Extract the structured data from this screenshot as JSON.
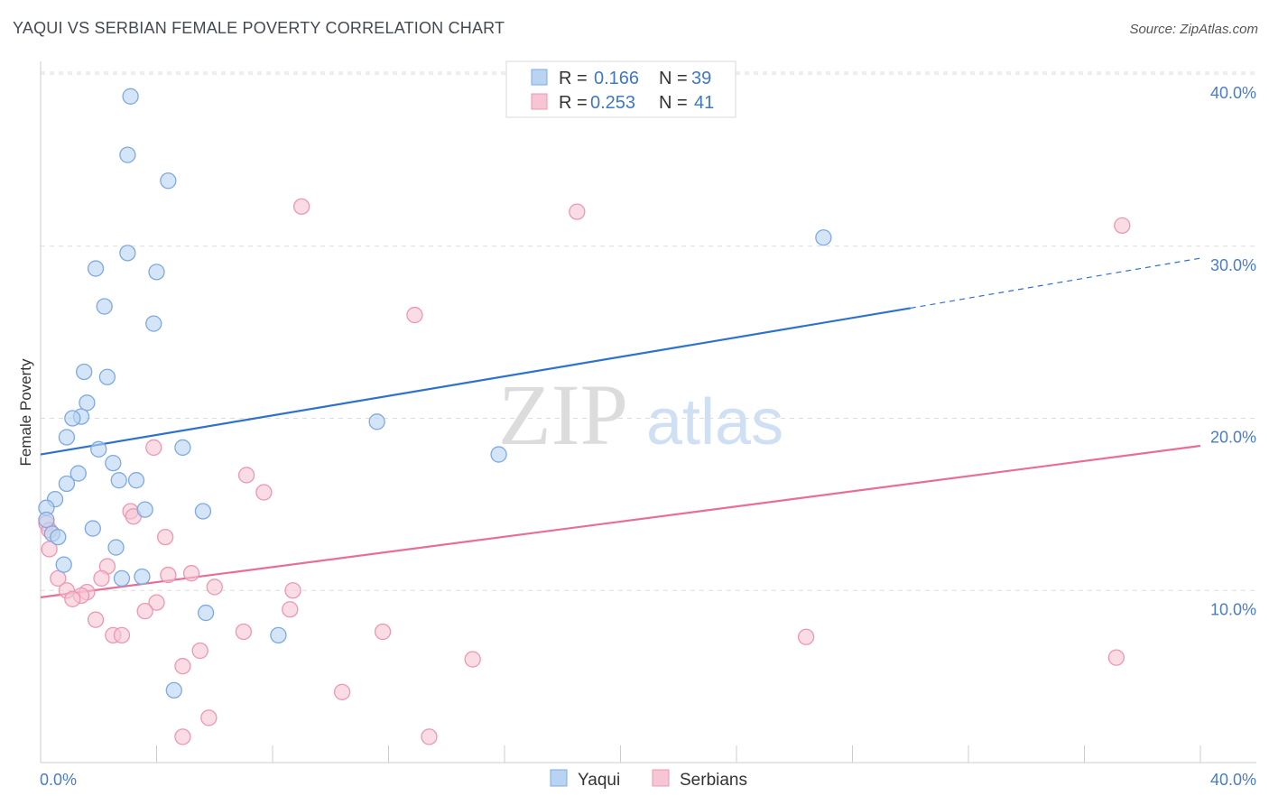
{
  "title": "YAQUI VS SERBIAN FEMALE POVERTY CORRELATION CHART",
  "source": "Source: ZipAtlas.com",
  "watermark": {
    "zip": "ZIP",
    "atlas": "atlas"
  },
  "colors": {
    "yaqui_fill": "#b9d3f3",
    "yaqui_stroke": "#7fa9e0",
    "yaqui_line": "#2f72cc",
    "serbian_fill": "#f7c5d3",
    "serbian_stroke": "#ee97b2",
    "serbian_line": "#e76f97",
    "tick_label": "#4a7cc9",
    "grid": "#dddddd"
  },
  "legend": {
    "rows": [
      {
        "r_label": "R =",
        "r_value": "0.166",
        "n_label": "N =",
        "n_value": "39"
      },
      {
        "r_label": "R =",
        "r_value": "0.253",
        "n_label": "N =",
        "n_value": "41"
      }
    ]
  },
  "chart_data": {
    "type": "scatter",
    "title": "YAQUI VS SERBIAN FEMALE POVERTY CORRELATION CHART",
    "xlabel": "",
    "ylabel": "Female Poverty",
    "xlim": [
      0,
      40
    ],
    "ylim": [
      0,
      40
    ],
    "x_tick_labels": [
      {
        "value": 0,
        "label": "0.0%"
      },
      {
        "value": 40,
        "label": "40.0%"
      }
    ],
    "y_tick_labels": [
      {
        "value": 10,
        "label": "10.0%"
      },
      {
        "value": 20,
        "label": "20.0%"
      },
      {
        "value": 30,
        "label": "30.0%"
      },
      {
        "value": 40,
        "label": "40.0%"
      }
    ],
    "series": [
      {
        "name": "Yaqui",
        "R": 0.166,
        "N": 39,
        "trend": {
          "x0": 0,
          "y0": 17.9,
          "x1": 30.0,
          "y1": 26.4,
          "dash_x1": 40,
          "dash_y1": 29.3
        },
        "points": [
          [
            3.1,
            38.7
          ],
          [
            3.0,
            35.3
          ],
          [
            4.4,
            33.8
          ],
          [
            3.0,
            29.6
          ],
          [
            1.9,
            28.7
          ],
          [
            4.0,
            28.5
          ],
          [
            2.2,
            26.5
          ],
          [
            3.9,
            25.5
          ],
          [
            1.5,
            22.7
          ],
          [
            2.3,
            22.4
          ],
          [
            1.6,
            20.9
          ],
          [
            1.4,
            20.1
          ],
          [
            1.1,
            20.0
          ],
          [
            11.6,
            19.8
          ],
          [
            0.9,
            18.9
          ],
          [
            2.0,
            18.2
          ],
          [
            4.9,
            18.3
          ],
          [
            15.8,
            17.9
          ],
          [
            2.5,
            17.4
          ],
          [
            1.3,
            16.8
          ],
          [
            0.9,
            16.2
          ],
          [
            2.7,
            16.4
          ],
          [
            3.3,
            16.4
          ],
          [
            0.5,
            15.3
          ],
          [
            0.2,
            14.8
          ],
          [
            5.6,
            14.6
          ],
          [
            3.6,
            14.7
          ],
          [
            0.2,
            14.1
          ],
          [
            0.4,
            13.3
          ],
          [
            1.8,
            13.6
          ],
          [
            0.6,
            13.1
          ],
          [
            2.6,
            12.5
          ],
          [
            0.8,
            11.5
          ],
          [
            2.8,
            10.7
          ],
          [
            3.5,
            10.8
          ],
          [
            5.7,
            8.7
          ],
          [
            8.2,
            7.4
          ],
          [
            27.0,
            30.5
          ],
          [
            4.6,
            4.2
          ]
        ]
      },
      {
        "name": "Serbians",
        "R": 0.253,
        "N": 41,
        "trend": {
          "x0": 0,
          "y0": 9.6,
          "x1": 40,
          "y1": 18.4
        },
        "points": [
          [
            9.0,
            32.3
          ],
          [
            18.5,
            32.0
          ],
          [
            37.3,
            31.2
          ],
          [
            12.9,
            26.0
          ],
          [
            3.9,
            18.3
          ],
          [
            7.1,
            16.7
          ],
          [
            7.7,
            15.7
          ],
          [
            3.1,
            14.6
          ],
          [
            3.2,
            14.3
          ],
          [
            0.2,
            13.9
          ],
          [
            0.3,
            13.5
          ],
          [
            4.3,
            13.1
          ],
          [
            0.3,
            12.4
          ],
          [
            2.3,
            11.4
          ],
          [
            5.2,
            11.0
          ],
          [
            4.4,
            10.9
          ],
          [
            0.6,
            10.7
          ],
          [
            2.1,
            10.7
          ],
          [
            6.0,
            10.2
          ],
          [
            8.7,
            10.0
          ],
          [
            0.9,
            10.0
          ],
          [
            1.6,
            9.9
          ],
          [
            1.4,
            9.7
          ],
          [
            1.1,
            9.5
          ],
          [
            4.0,
            9.3
          ],
          [
            3.6,
            8.8
          ],
          [
            8.6,
            8.9
          ],
          [
            1.9,
            8.3
          ],
          [
            11.8,
            7.6
          ],
          [
            7.0,
            7.6
          ],
          [
            26.4,
            7.3
          ],
          [
            2.5,
            7.4
          ],
          [
            2.8,
            7.4
          ],
          [
            5.5,
            6.5
          ],
          [
            14.9,
            6.0
          ],
          [
            37.1,
            6.1
          ],
          [
            4.9,
            5.6
          ],
          [
            10.4,
            4.1
          ],
          [
            5.8,
            2.6
          ],
          [
            4.9,
            1.5
          ],
          [
            13.4,
            1.5
          ]
        ]
      }
    ]
  }
}
